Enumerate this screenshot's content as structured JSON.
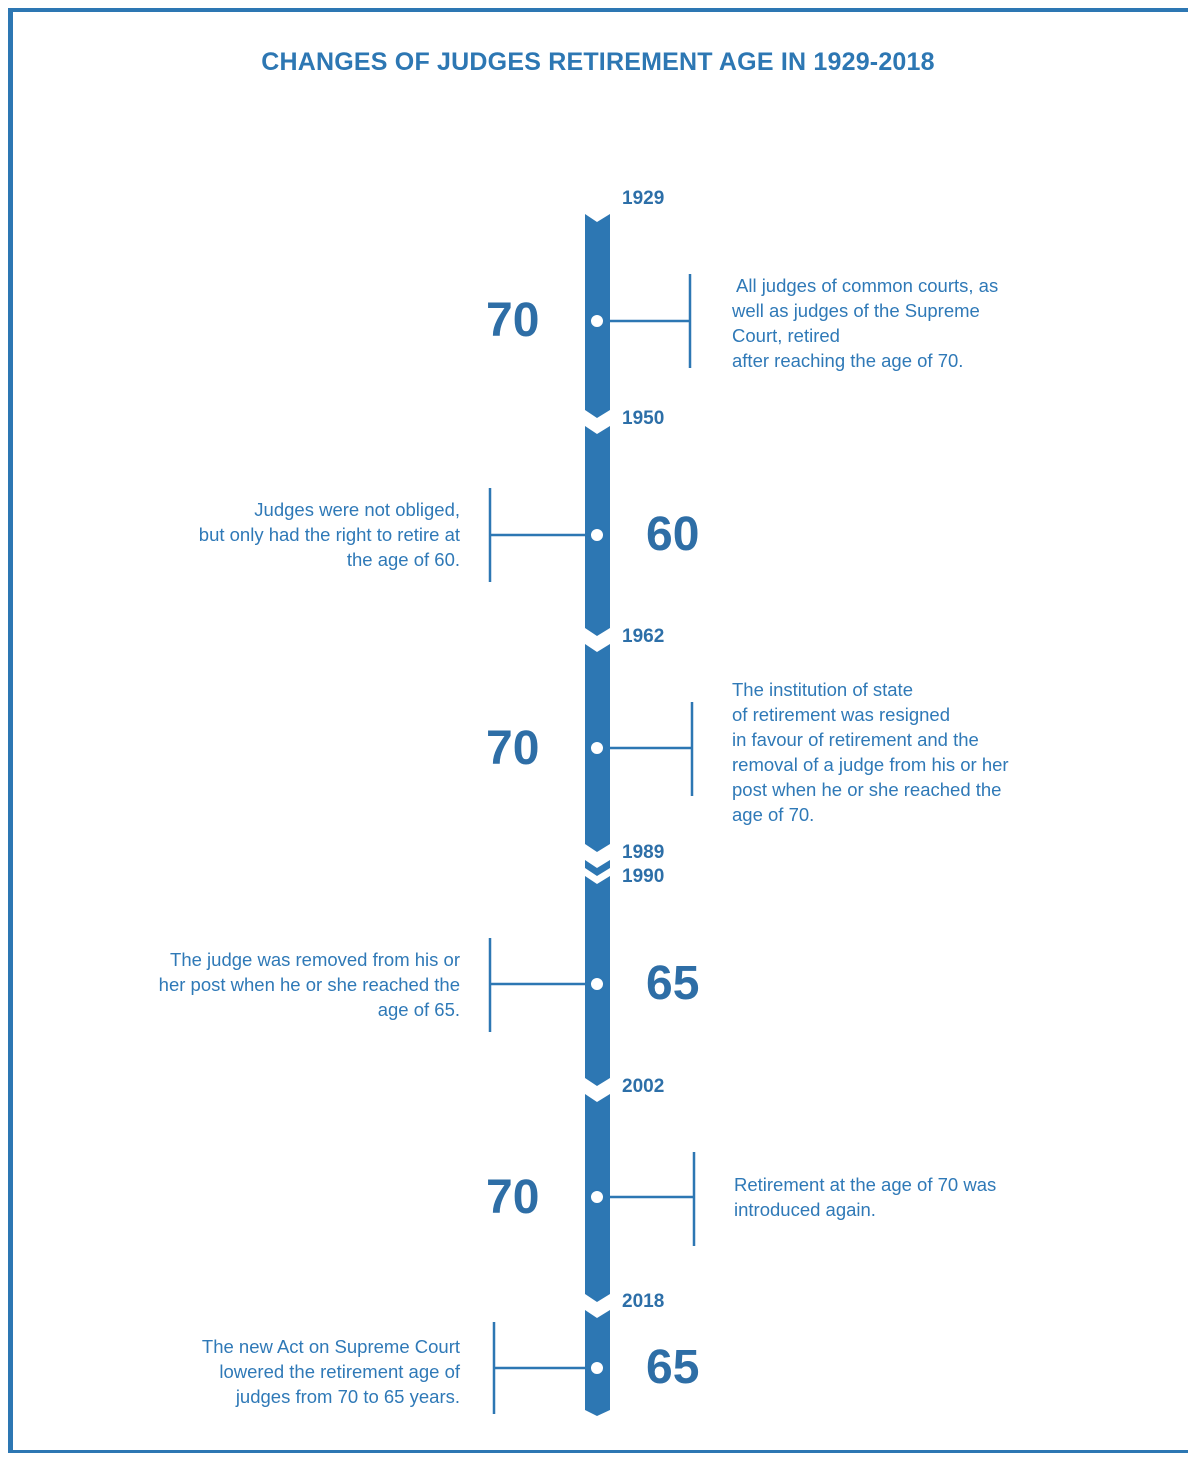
{
  "title": "CHANGES OF JUDGES RETIREMENT AGE IN 1929-2018",
  "colors": {
    "accent": "#2d77b3",
    "dark": "#2e6ea6",
    "text": "#2f79b7"
  },
  "years": [
    "1929",
    "1950",
    "1962",
    "1989",
    "1990",
    "2002",
    "2018"
  ],
  "periods": [
    {
      "age": "70",
      "text_lines": [
        "All judges of common courts, as",
        "well as judges of the Supreme",
        "Court, retired",
        "after reaching the age of 70."
      ]
    },
    {
      "age": "60",
      "text_lines": [
        "Judges were not obliged,",
        "but only had the right to retire at",
        "the age of 60."
      ]
    },
    {
      "age": "70",
      "text_lines": [
        "The institution of state",
        "of retirement was resigned",
        "in favour of retirement and the",
        "removal of a judge from his or her",
        "post when he or she reached the",
        "age of 70."
      ]
    },
    {
      "age": "65",
      "text_lines": [
        "The judge was removed from his or",
        "her post when he or she reached the",
        "age of 65."
      ]
    },
    {
      "age": "70",
      "text_lines": [
        "Retirement at the age of 70 was",
        "introduced again."
      ]
    },
    {
      "age": "65",
      "text_lines": [
        "The new Act on Supreme Court",
        "lowered the retirement age of",
        "judges from 70 to 65 years."
      ]
    }
  ]
}
